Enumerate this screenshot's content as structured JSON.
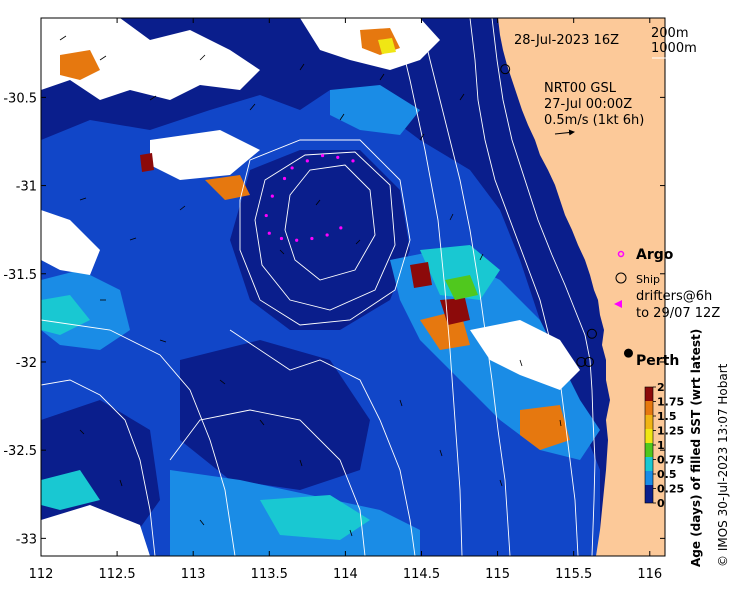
{
  "map": {
    "date_label": "28-Jul-2023 16Z",
    "depth_legend": [
      "200m",
      "1000m"
    ],
    "product_label": "NRT00 GSL",
    "product_time": "27-Jul 00:00Z",
    "current_scale_label": "0.5m/s (1kt 6h)",
    "legend": {
      "argo": "Argo",
      "ship": "Ship",
      "drifters_line1": "drifters@6h",
      "drifters_line2": "to 29/07 12Z"
    },
    "city_label": "Perth",
    "colorbar_title": "Age (days) of filled SST (wrt latest)",
    "credit": "© IMOS 30-Jul-2023 13:07 Hobart",
    "colors": {
      "land": "#fcc999",
      "deep_blue": "#0a1e8c",
      "mid_blue": "#1146c8",
      "light_blue": "#1a8ce6",
      "cyan": "#19c8d2",
      "orange": "#e6780f",
      "dark_red": "#8c0a0a",
      "argo_magenta": "#ff00ff"
    }
  },
  "chart_data": {
    "type": "heatmap",
    "x_ticks": [
      "112",
      "112.5",
      "113",
      "113.5",
      "114",
      "114.5",
      "115",
      "115.5",
      "116"
    ],
    "y_ticks": [
      "-30.5",
      "-31",
      "-31.5",
      "-32",
      "-32.5",
      "-33"
    ],
    "xlim": [
      112,
      116.1
    ],
    "ylim": [
      -33.1,
      -30.05
    ],
    "colorbar": {
      "ticks": [
        "2",
        "1.75",
        "1.5",
        "1.25",
        "1",
        "0.75",
        "0.5",
        "0.25",
        "0"
      ],
      "range": [
        0,
        2
      ]
    },
    "argo_track": [
      [
        113.65,
        -30.9
      ],
      [
        113.75,
        -30.86
      ],
      [
        113.85,
        -30.83
      ],
      [
        113.95,
        -30.84
      ],
      [
        114.05,
        -30.86
      ],
      [
        113.6,
        -30.96
      ],
      [
        113.52,
        -31.06
      ],
      [
        113.48,
        -31.17
      ],
      [
        113.5,
        -31.27
      ],
      [
        113.58,
        -31.3
      ],
      [
        113.68,
        -31.31
      ],
      [
        113.78,
        -31.3
      ],
      [
        113.88,
        -31.28
      ],
      [
        113.97,
        -31.24
      ]
    ],
    "ship_positions": [
      [
        115.05,
        -30.34
      ],
      [
        115.62,
        -31.84
      ],
      [
        115.55,
        -32.0
      ],
      [
        115.6,
        -32.0
      ]
    ],
    "perth": [
      115.86,
      -31.95
    ]
  }
}
